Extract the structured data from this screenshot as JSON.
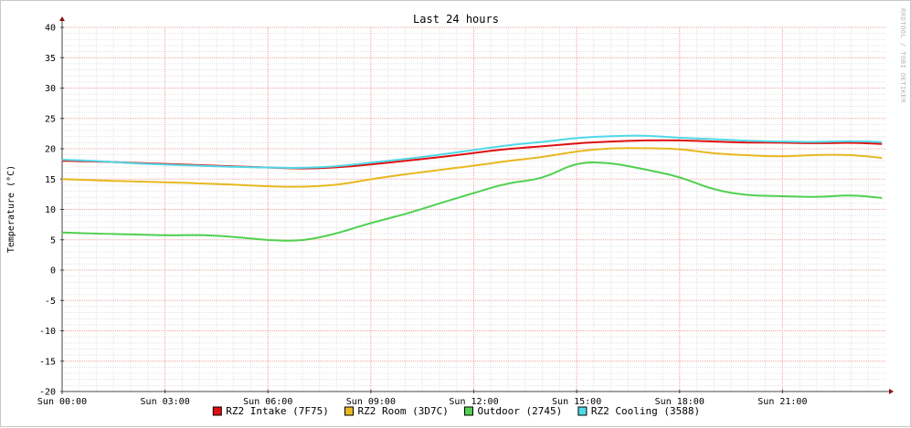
{
  "chart_data": {
    "type": "line",
    "title": "Last 24 hours",
    "ylabel": "Temperature (°C)",
    "xlabel": "",
    "ylim": [
      -20,
      40
    ],
    "yticks": [
      40,
      35,
      30,
      25,
      20,
      15,
      10,
      5,
      0,
      -5,
      -10,
      -15,
      -20
    ],
    "xlim": [
      0,
      24
    ],
    "xtick_hours": [
      0,
      3,
      6,
      9,
      12,
      15,
      18,
      21
    ],
    "xtick_labels": [
      "Sun 00:00",
      "Sun 03:00",
      "Sun 06:00",
      "Sun 09:00",
      "Sun 12:00",
      "Sun 15:00",
      "Sun 18:00",
      "Sun 21:00"
    ],
    "grid": true,
    "legend_position": "bottom",
    "watermark": "RRDTOOL / TOBI OETIKER",
    "x": [
      0,
      1,
      2,
      3,
      4,
      5,
      6,
      7,
      8,
      9,
      10,
      11,
      12,
      13,
      14,
      15,
      16,
      17,
      18,
      19,
      20,
      21,
      22,
      23,
      23.9
    ],
    "series": [
      {
        "name": "RZ2 Intake (7F75)",
        "color": "#e01010",
        "border": "#800000",
        "values": [
          18.0,
          17.9,
          17.7,
          17.5,
          17.3,
          17.1,
          16.9,
          16.7,
          16.9,
          17.4,
          18.0,
          18.6,
          19.3,
          20.0,
          20.4,
          20.9,
          21.2,
          21.4,
          21.4,
          21.2,
          21.0,
          21.0,
          20.9,
          21.0,
          20.8
        ]
      },
      {
        "name": "RZ2 Room (3D7C)",
        "color": "#e8b820",
        "border": "#806000",
        "values": [
          15.0,
          14.8,
          14.6,
          14.5,
          14.3,
          14.1,
          13.8,
          13.7,
          14.0,
          15.0,
          15.8,
          16.5,
          17.2,
          18.0,
          18.6,
          19.6,
          20.1,
          20.1,
          20.0,
          19.2,
          18.9,
          18.7,
          19.0,
          19.0,
          18.5
        ]
      },
      {
        "name": "Outdoor (2745)",
        "color": "#50d050",
        "border": "#006000",
        "values": [
          6.2,
          6.0,
          5.9,
          5.7,
          5.8,
          5.5,
          4.9,
          4.8,
          6.0,
          7.8,
          9.2,
          11.0,
          12.7,
          14.4,
          15.0,
          17.8,
          17.7,
          16.6,
          15.4,
          13.2,
          12.3,
          12.2,
          12.0,
          12.4,
          11.9
        ]
      },
      {
        "name": "RZ2 Cooling (3588)",
        "color": "#50d8e8",
        "border": "#006080",
        "values": [
          18.2,
          18.0,
          17.6,
          17.4,
          17.2,
          17.0,
          16.9,
          16.8,
          17.1,
          17.7,
          18.3,
          19.0,
          19.8,
          20.6,
          21.1,
          21.8,
          22.1,
          22.2,
          21.8,
          21.6,
          21.3,
          21.2,
          21.1,
          21.3,
          21.1
        ]
      }
    ]
  }
}
